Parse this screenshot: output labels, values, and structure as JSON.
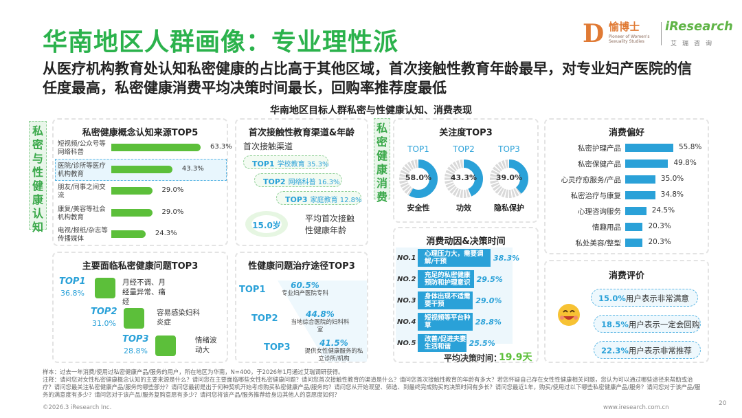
{
  "title": "华南地区人群画像：专业理性派",
  "subtitle": "从医疗机构教育处认知私密健康的占比高于其他区域，首次接触性教育年龄最早，对专业妇产医院的信任度最高，私密健康消费平均决策时间最长，回购率推荐度最低",
  "logos": {
    "yubo_cn": "愉博士",
    "yubo_en": "Pioneer of Women's Sexuality Studies",
    "iresearch": "iResearch",
    "iresearch_cn": "艾瑞咨询"
  },
  "chart_heading": "华南地区目标人群私密与性健康认知、消费表现",
  "side_tab_left": "私密与性健康认知",
  "side_tab_mid": "私密健康消费",
  "chart_data": [
    {
      "type": "bar",
      "title": "私密健康概念认知来源TOP5",
      "categories": [
        "短视频/公众号等网络科普",
        "医院/诊所等医疗机构教育",
        "朋友/同事之间交流",
        "康复/美容等社会机构教育",
        "电视/报纸/杂志等传播媒体"
      ],
      "values": [
        63.3,
        43.3,
        29.0,
        29.0,
        24.3
      ],
      "value_labels": [
        "63.3%",
        "43.3%",
        "29.0%",
        "29.0%",
        "24.3%"
      ],
      "highlight_index": 1,
      "unit": "%"
    },
    {
      "type": "bar",
      "title": "首次接触性教育渠道&年龄",
      "subtitle": "首次接触渠道",
      "categories": [
        "学校教育",
        "网络科普",
        "家庭教育"
      ],
      "ranks": [
        "TOP1",
        "TOP2",
        "TOP3"
      ],
      "values": [
        35.3,
        16.3,
        12.8
      ],
      "value_labels": [
        "35.3%",
        "16.3%",
        "12.8%"
      ],
      "avg_age": "15.0岁",
      "avg_age_label": "平均首次接触性健康年龄"
    },
    {
      "type": "pie",
      "title": "关注度TOP3",
      "ranks": [
        "TOP1",
        "TOP2",
        "TOP3"
      ],
      "categories": [
        "安全性",
        "功效",
        "隐私保护"
      ],
      "values": [
        58.0,
        43.3,
        39.0
      ],
      "value_labels": [
        "58.0%",
        "43.3%",
        "39.0%"
      ]
    },
    {
      "type": "bar",
      "title": "消费偏好",
      "categories": [
        "私密护理产品",
        "私密保健产品",
        "心灵疗愈服务/产品",
        "私密治疗与康复",
        "心理咨询服务",
        "情趣用品",
        "私处美容/整型"
      ],
      "values": [
        55.8,
        49.8,
        35.0,
        34.8,
        24.5,
        20.3,
        20.3
      ],
      "value_labels": [
        "55.8%",
        "49.8%",
        "35.0%",
        "34.8%",
        "24.5%",
        "20.3%",
        "20.3%"
      ],
      "unit": "%"
    },
    {
      "type": "table",
      "title": "主要面临私密健康问题TOP3",
      "ranks": [
        "TOP1",
        "TOP2",
        "TOP3"
      ],
      "categories": [
        "月经不调、月经量异常、痛经",
        "容易感染妇科炎症",
        "情绪波动大"
      ],
      "values": [
        36.8,
        31.0,
        28.8
      ],
      "value_labels": [
        "36.8%",
        "31.0%",
        "28.8%"
      ]
    },
    {
      "type": "bar",
      "title": "性健康问题治疗途径TOP3",
      "ranks": [
        "TOP1",
        "TOP2",
        "TOP3"
      ],
      "categories": [
        "专业妇产医院专科",
        "当地综合医院的妇科科室",
        "提供女性健康服务的私立诊所/机构"
      ],
      "values": [
        60.5,
        44.8,
        41.5
      ],
      "value_labels": [
        "60.5%",
        "44.8%",
        "41.5%"
      ]
    },
    {
      "type": "bar",
      "title": "消费动因&决策时间",
      "ranks": [
        "NO.1",
        "NO.2",
        "NO.3",
        "NO.4",
        "NO.5"
      ],
      "categories": [
        "心理压力大，需要调解/干预",
        "充足的私密健康预防和护理意识",
        "身体出现不适需要干预",
        "短视频等平台种草",
        "改善/促进夫妻生活和谐"
      ],
      "values": [
        38.3,
        29.5,
        29.0,
        28.8,
        25.5
      ],
      "value_labels": [
        "38.3%",
        "29.5%",
        "29.0%",
        "28.8%",
        "25.5%"
      ],
      "avg_decision_label": "平均决策时间：",
      "avg_decision_value": "19.9天"
    },
    {
      "type": "table",
      "title": "消费评价",
      "values": [
        15.0,
        18.5,
        22.3
      ],
      "value_labels": [
        "15.0%",
        "18.5%",
        "22.3%"
      ],
      "categories": [
        "用户表示非常满意",
        "用户表示一定会回购",
        "用户表示非常推荐"
      ]
    }
  ],
  "notes": [
    "样本：过去一年消费/使用过私密健康产品/服务的用户，所在地区为华南，N=400，于2026年1月通过艾瑞调研获得。",
    "注释：请问您对女性私密健康概念认知的主要来源是什么？请问您在主要面临哪些女性私密健康问题？请问您首次接触性教育的渠道是什么？请问您首次接触性教育的年龄有多大？若您怀疑自己存在女性性健康相关问题，您认为可以通过哪些途径来帮助或治疗？请问您最关注私密健康产品/服务的哪些部分？请问您最初是出于何种契机开始考虑购买私密健康产品/服务的？请问您从开始观望、筛选、到最终完成购买的决策时间有多长？请问您最近1年，购买/使用过以下哪些私密健康产品/服务？请问您对于该产品/服务的满意度有多少？请问您对于该产品/服务复购意愿有多少？请问您将该产品/服务推荐给身边其他人的意愿度如何？"
  ],
  "footer_left": "©2026.3 iResearch Inc.",
  "footer_right": "www.iresearch.com.cn",
  "page_number": "20",
  "colors": {
    "green": "#5cbf3a",
    "blue": "#2aa1d8",
    "title_green": "#2bb24c"
  }
}
